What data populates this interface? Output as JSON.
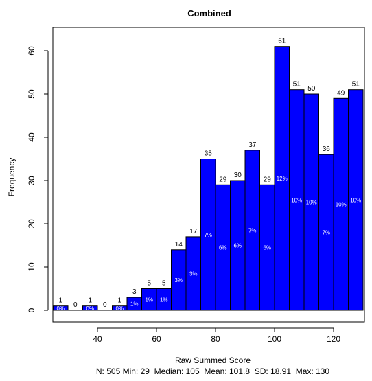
{
  "chart_data": {
    "type": "bar",
    "title": "Combined",
    "xlabel": "Raw Summed Score",
    "ylabel": "Frequency",
    "summary": "N: 505 Min: 29  Median: 105  Mean: 101.8  SD: 18.91  Max: 130",
    "bin_width": 5,
    "bin_starts": [
      25,
      30,
      35,
      40,
      45,
      50,
      55,
      60,
      65,
      70,
      75,
      80,
      85,
      90,
      95,
      100,
      105,
      110,
      115,
      120,
      125
    ],
    "values": [
      1,
      0,
      1,
      0,
      1,
      3,
      5,
      5,
      14,
      17,
      35,
      29,
      30,
      37,
      29,
      61,
      51,
      50,
      36,
      49,
      51
    ],
    "count_labels": [
      "1",
      "0",
      "1",
      "0",
      "1",
      "3",
      "5",
      "5",
      "14",
      "17",
      "35",
      "29",
      "30",
      "37",
      "29",
      "61",
      "51",
      "50",
      "36",
      "49",
      "51"
    ],
    "percent_labels": [
      "0%",
      "",
      "0%",
      "",
      "0%",
      "1%",
      "1%",
      "1%",
      "3%",
      "3%",
      "7%",
      "6%",
      "6%",
      "7%",
      "6%",
      "12%",
      "10%",
      "10%",
      "7%",
      "10%",
      "10%"
    ],
    "xlim": [
      25,
      130
    ],
    "ylim": [
      0,
      65
    ],
    "xticks": [
      40,
      60,
      80,
      100,
      120
    ],
    "yticks": [
      0,
      10,
      20,
      30,
      40,
      50,
      60
    ],
    "bar_color": "#0000ff",
    "bar_edge_color": "#000000",
    "percent_label_color": "#ffffff",
    "grid": false
  }
}
